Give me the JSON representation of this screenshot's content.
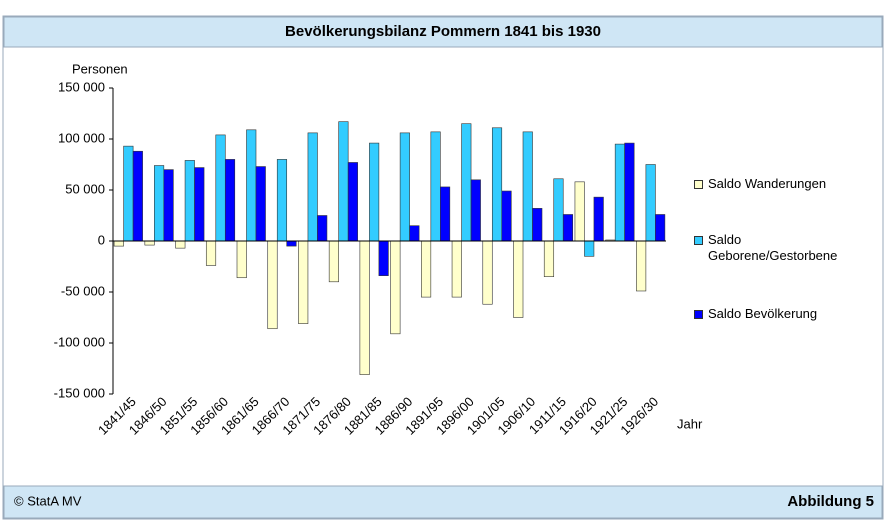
{
  "chart_data": {
    "type": "bar",
    "title": "Bevölkerungsbilanz Pommern 1841 bis 1930",
    "y_label": "Personen",
    "x_label": "Jahr",
    "source": "© StatA MV",
    "figure_label": "Abbildung 5",
    "categories": [
      "1841/45",
      "1846/50",
      "1851/55",
      "1856/60",
      "1861/65",
      "1866/70",
      "1871/75",
      "1876/80",
      "1881/85",
      "1886/90",
      "1891/95",
      "1896/00",
      "1901/05",
      "1906/10",
      "1911/15",
      "1916/20",
      "1921/25",
      "1926/30"
    ],
    "series": [
      {
        "name": "Saldo Wanderungen",
        "color": "#ffffcc",
        "values": [
          -5000,
          -4000,
          -7000,
          -24000,
          -36000,
          -86000,
          -81000,
          -40000,
          -131000,
          -91000,
          -55000,
          -55000,
          -62000,
          -75000,
          -35000,
          58000,
          1000,
          -49000
        ]
      },
      {
        "name": "Saldo Geborene/Gestorbene",
        "color": "#33ccff",
        "values": [
          93000,
          74000,
          79000,
          104000,
          109000,
          80000,
          106000,
          117000,
          96000,
          106000,
          107000,
          115000,
          111000,
          107000,
          61000,
          -15000,
          95000,
          75000
        ]
      },
      {
        "name": "Saldo Bevölkerung",
        "color": "#0000ff",
        "values": [
          88000,
          70000,
          72000,
          80000,
          73000,
          -5000,
          25000,
          77000,
          -34000,
          15000,
          53000,
          60000,
          49000,
          32000,
          26000,
          43000,
          96000,
          26000
        ]
      }
    ],
    "ylim": [
      -150000,
      150000
    ],
    "yticks": [
      {
        "value": -150000,
        "label": "-150 000"
      },
      {
        "value": -100000,
        "label": "-100 000"
      },
      {
        "value": -50000,
        "label": "-50 000"
      },
      0,
      {
        "value": 50000,
        "label": "50 000"
      },
      {
        "value": 100000,
        "label": "100 000"
      },
      {
        "value": 150000,
        "label": "150 000"
      }
    ]
  }
}
